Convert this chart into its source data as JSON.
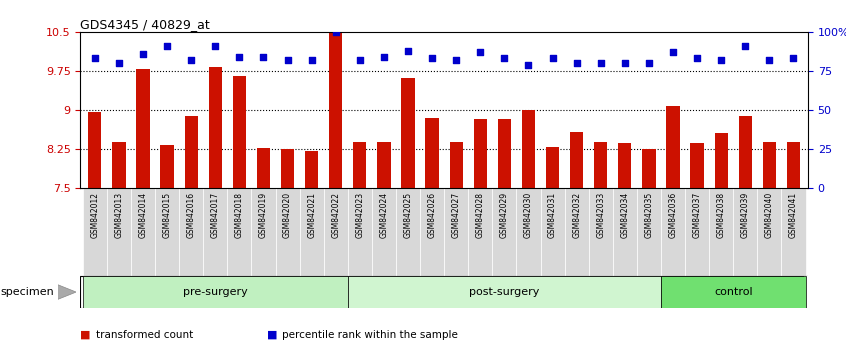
{
  "title": "GDS4345 / 40829_at",
  "categories": [
    "GSM842012",
    "GSM842013",
    "GSM842014",
    "GSM842015",
    "GSM842016",
    "GSM842017",
    "GSM842018",
    "GSM842019",
    "GSM842020",
    "GSM842021",
    "GSM842022",
    "GSM842023",
    "GSM842024",
    "GSM842025",
    "GSM842026",
    "GSM842027",
    "GSM842028",
    "GSM842029",
    "GSM842030",
    "GSM842031",
    "GSM842032",
    "GSM842033",
    "GSM842034",
    "GSM842035",
    "GSM842036",
    "GSM842037",
    "GSM842038",
    "GSM842039",
    "GSM842040",
    "GSM842041"
  ],
  "bar_values": [
    8.95,
    8.38,
    9.78,
    8.32,
    8.87,
    9.82,
    9.65,
    8.27,
    8.25,
    8.2,
    10.48,
    8.37,
    8.37,
    9.62,
    8.85,
    8.37,
    8.83,
    8.83,
    9.0,
    8.28,
    8.58,
    8.37,
    8.35,
    8.25,
    9.08,
    8.35,
    8.55,
    8.87,
    8.37,
    8.37
  ],
  "percentile_values": [
    83,
    80,
    86,
    91,
    82,
    91,
    84,
    84,
    82,
    82,
    100,
    82,
    84,
    88,
    83,
    82,
    87,
    83,
    79,
    83,
    80,
    80,
    80,
    80,
    87,
    83,
    82,
    91,
    82,
    83
  ],
  "ylim_left": [
    7.5,
    10.5
  ],
  "ylim_right": [
    0,
    100
  ],
  "yticks_left": [
    7.5,
    8.25,
    9.0,
    9.75,
    10.5
  ],
  "ytick_labels_left": [
    "7.5",
    "8.25",
    "9",
    "9.75",
    "10.5"
  ],
  "yticks_right": [
    0,
    25,
    50,
    75,
    100
  ],
  "ytick_labels_right": [
    "0",
    "25",
    "50",
    "75",
    "100%"
  ],
  "groups": [
    {
      "label": "pre-surgery",
      "start": 0,
      "end": 10,
      "color": "#c0f0c0"
    },
    {
      "label": "post-surgery",
      "start": 11,
      "end": 23,
      "color": "#d0f5d0"
    },
    {
      "label": "control",
      "start": 24,
      "end": 29,
      "color": "#70e070"
    }
  ],
  "bar_color": "#cc1100",
  "dot_color": "#0000cc",
  "bar_width": 0.55,
  "specimen_label": "specimen",
  "legend_items": [
    {
      "label": "transformed count",
      "color": "#cc1100"
    },
    {
      "label": "percentile rank within the sample",
      "color": "#0000cc"
    }
  ],
  "dotted_lines": [
    8.25,
    9.0,
    9.75
  ],
  "tick_label_color_left": "#cc0000",
  "tick_label_color_right": "#0000cc",
  "tick_bg_color": "#d8d8d8"
}
